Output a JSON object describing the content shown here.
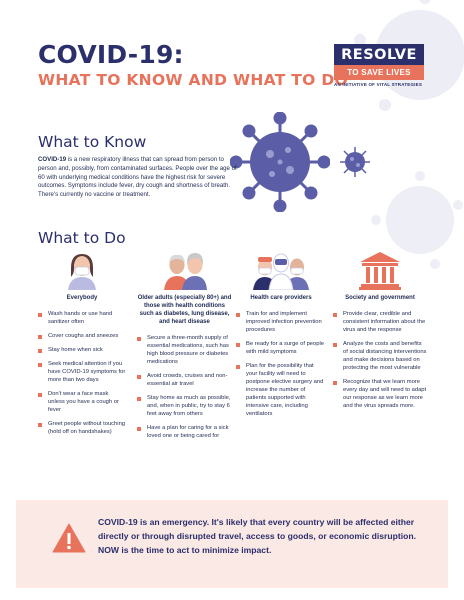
{
  "header": {
    "title": "COVID-19:",
    "subtitle": "WHAT TO KNOW AND WHAT TO DO"
  },
  "logo": {
    "line1": "RESOLVE",
    "line2": "TO SAVE LIVES",
    "tagline": "AN INITIATIVE OF VITAL STRATEGIES"
  },
  "know": {
    "heading": "What to Know",
    "lead": "COVID-19",
    "text": " is a new respiratory illness that can spread from person to person and, possibly, from contaminated surfaces. People over the age of 60 with underlying medical conditions have the highest risk for severe outcomes. Symptoms include fever, dry cough and shortness of breath. There's currently no vaccine or treatment."
  },
  "do": {
    "heading": "What to Do",
    "columns": [
      {
        "icon": "person-mask-icon",
        "title": "Everybody",
        "items": [
          "Wash hands or use hand sanitizer often",
          "Cover coughs and sneezes",
          "Stay home when sick",
          "Seek medical attention if you have COVID-19 symptoms for more than two days",
          "Don't wear a face mask unless you have a cough or fever",
          "Greet people without touching (hold off on handshakes)"
        ]
      },
      {
        "icon": "older-adults-icon",
        "title": "Older adults (especially 80+) and those with health conditions such as diabetes, lung disease, and heart disease",
        "items": [
          "Secure a three-month supply of essential medications, such has high blood pressure or diabetes medications",
          "Avoid crowds, cruises and non-essential air travel",
          "Stay home as much as possible, and, when in public, try to stay 6 feet away from others",
          "Have a plan for caring for a sick loved one or being cared for"
        ]
      },
      {
        "icon": "health-care-providers-icon",
        "title": "Health care providers",
        "items": [
          "Train for and implement improved infection prevention procedures",
          "Be ready for a surge of people with mild symptoms",
          "Plan for the possibility that your facility will need to postpone elective surgery and increase the number of patients supported with intensive care, including ventilators"
        ]
      },
      {
        "icon": "government-building-icon",
        "title": "Society and government",
        "items": [
          "Provide clear, credible and consistent information about the virus and the response",
          "Analyze the costs and benefits of social distancing interventions and make decisions based on protecting the most vulnerable",
          "Recognize that we learn more every day and will need to adapt our response as we learn more and the virus spreads more."
        ]
      }
    ]
  },
  "banner": {
    "icon": "warning-icon",
    "text": "COVID-19 is an emergency. It's likely that every country will be affected either directly or through disrupted travel, access to goods, or economic disruption. NOW is the time to act to minimize impact."
  },
  "colors": {
    "navy": "#2b2f6b",
    "coral": "#e8735c",
    "virus": "#5b5ea6",
    "banner_bg": "#fbe9e6"
  }
}
